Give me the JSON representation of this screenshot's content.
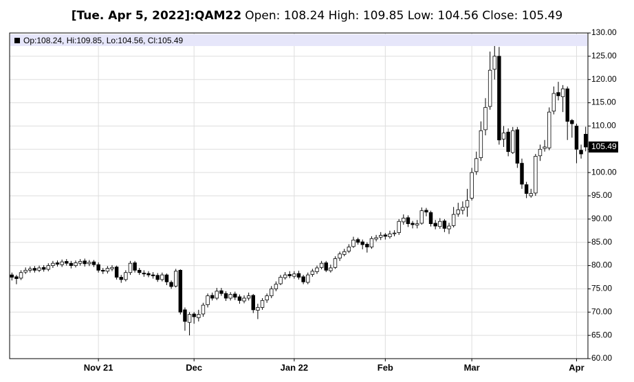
{
  "chart_data": {
    "type": "candlestick",
    "title_symbol": "[Tue. Apr 5, 2022]:QAM22",
    "title_rest": "Open: 108.24 High: 109.85 Low: 104.56 Close: 105.49",
    "legend_text": "Op:108.24, Hi:109.85, Lo:104.56, Cl:105.49",
    "categories": [
      null,
      null,
      null,
      null,
      null,
      null,
      null,
      null,
      null,
      null,
      null,
      null,
      null,
      null,
      null,
      null,
      null,
      null,
      null,
      "Nov 21",
      null,
      null,
      null,
      null,
      null,
      null,
      null,
      null,
      null,
      null,
      null,
      null,
      null,
      null,
      null,
      null,
      null,
      null,
      null,
      null,
      "Dec",
      null,
      null,
      null,
      null,
      null,
      null,
      null,
      null,
      null,
      null,
      null,
      null,
      null,
      null,
      null,
      null,
      null,
      null,
      null,
      null,
      null,
      "Jan 22",
      null,
      null,
      null,
      null,
      null,
      null,
      null,
      null,
      null,
      null,
      null,
      null,
      null,
      null,
      null,
      null,
      null,
      null,
      null,
      "Feb",
      null,
      null,
      null,
      null,
      null,
      null,
      null,
      null,
      null,
      null,
      null,
      null,
      null,
      null,
      null,
      null,
      null,
      null,
      "Mar",
      null,
      null,
      null,
      null,
      null,
      null,
      null,
      null,
      null,
      null,
      null,
      null,
      null,
      null,
      null,
      null,
      null,
      null,
      null,
      null,
      null,
      null,
      "Apr",
      null,
      null
    ],
    "open": [
      78.0,
      77.6,
      77.3,
      78.6,
      79.0,
      79.4,
      79.0,
      79.6,
      79.2,
      80.0,
      80.6,
      80.2,
      80.9,
      80.5,
      80.0,
      80.5,
      81.0,
      80.4,
      80.8,
      80.2,
      79.0,
      78.8,
      79.3,
      79.7,
      77.5,
      77.0,
      78.5,
      80.6,
      79.0,
      78.4,
      78.3,
      78.0,
      77.9,
      77.0,
      78.0,
      76.4,
      75.6,
      79.0,
      70.5,
      67.8,
      69.6,
      68.8,
      69.6,
      71.6,
      73.6,
      73.0,
      74.6,
      74.0,
      73.0,
      73.9,
      73.3,
      72.4,
      73.0,
      73.6,
      70.4,
      71.0,
      72.6,
      73.5,
      75.0,
      76.1,
      77.4,
      78.1,
      77.7,
      78.3,
      77.6,
      76.4,
      78.1,
      78.7,
      79.6,
      80.6,
      78.9,
      79.6,
      81.6,
      82.4,
      83.1,
      84.1,
      85.6,
      85.1,
      84.6,
      84.0,
      85.7,
      86.1,
      86.6,
      86.2,
      86.9,
      87.1,
      89.4,
      90.3,
      89.1,
      88.7,
      89.1,
      91.9,
      91.4,
      89.1,
      88.4,
      89.6,
      87.9,
      88.6,
      91.1,
      91.9,
      92.6,
      94.5,
      100.2,
      103.2,
      109.2,
      114.2,
      122.2,
      125.0,
      107.2,
      108.7,
      104.3,
      109.2,
      102.0,
      97.4,
      95.0,
      95.6,
      103.6,
      105.2,
      105.3,
      113.2,
      117.2,
      116.3,
      118.0,
      111.2,
      110.0,
      104.8,
      108.24
    ],
    "high": [
      78.5,
      78.0,
      79.0,
      79.6,
      79.8,
      79.9,
      80.0,
      80.1,
      80.5,
      81.0,
      81.1,
      81.3,
      81.4,
      81.0,
      81.1,
      81.4,
      81.5,
      81.2,
      81.2,
      80.7,
      79.5,
      79.9,
      80.1,
      80.0,
      78.0,
      79.0,
      81.0,
      81.0,
      79.5,
      79.0,
      78.8,
      78.6,
      78.4,
      78.5,
      78.3,
      76.8,
      79.3,
      79.2,
      71.0,
      70.0,
      70.0,
      70.5,
      72.0,
      74.0,
      74.2,
      75.2,
      75.2,
      74.5,
      74.3,
      74.4,
      73.8,
      73.6,
      74.2,
      73.9,
      71.8,
      73.0,
      74.0,
      75.6,
      76.6,
      78.0,
      78.6,
      78.8,
      78.8,
      78.9,
      78.0,
      78.5,
      79.3,
      80.0,
      81.0,
      81.0,
      80.2,
      82.0,
      83.0,
      83.6,
      84.6,
      86.2,
      86.0,
      85.6,
      85.0,
      86.3,
      86.6,
      87.2,
      87.0,
      87.5,
      87.6,
      90.0,
      91.0,
      90.8,
      89.6,
      89.8,
      92.5,
      92.4,
      91.8,
      89.8,
      90.2,
      90.0,
      89.2,
      92.6,
      93.5,
      93.8,
      96.5,
      101.0,
      104.5,
      111.0,
      116.0,
      126.0,
      128.0,
      127.0,
      110.0,
      109.5,
      109.8,
      109.8,
      103.0,
      98.0,
      96.5,
      104.0,
      106.0,
      107.0,
      114.0,
      118.5,
      119.5,
      118.8,
      118.5,
      111.5,
      110.5,
      106.0,
      109.85
    ],
    "low": [
      76.8,
      76.0,
      76.9,
      78.2,
      78.5,
      78.5,
      78.6,
      78.7,
      78.8,
      79.5,
      79.8,
      79.7,
      80.0,
      79.4,
      79.6,
      80.0,
      79.8,
      79.9,
      79.7,
      78.5,
      78.2,
      78.3,
      78.8,
      77.0,
      76.3,
      76.6,
      78.0,
      78.5,
      78.0,
      77.6,
      77.5,
      77.2,
      76.5,
      76.6,
      75.8,
      75.0,
      75.3,
      69.5,
      66.0,
      65.0,
      67.5,
      68.0,
      69.0,
      71.0,
      72.5,
      72.6,
      73.5,
      72.4,
      72.5,
      72.6,
      71.8,
      71.9,
      72.5,
      69.8,
      68.5,
      70.5,
      72.0,
      73.0,
      74.5,
      75.8,
      77.0,
      77.3,
      77.2,
      77.0,
      76.0,
      76.0,
      77.6,
      78.2,
      79.2,
      78.6,
      78.5,
      79.3,
      81.0,
      82.0,
      82.7,
      83.8,
      84.5,
      83.5,
      82.8,
      83.6,
      85.2,
      85.5,
      85.6,
      85.8,
      86.3,
      86.6,
      88.8,
      88.3,
      88.0,
      88.0,
      88.8,
      90.6,
      88.4,
      87.8,
      87.9,
      87.2,
      86.8,
      88.2,
      90.5,
      91.0,
      90.5,
      94.0,
      99.5,
      102.5,
      108.0,
      113.5,
      120.0,
      106.0,
      105.5,
      103.5,
      104.0,
      101.0,
      96.5,
      94.5,
      94.6,
      95.0,
      102.5,
      104.5,
      104.8,
      112.5,
      115.5,
      113.0,
      107.0,
      107.5,
      102.0,
      103.0,
      104.56
    ],
    "close": [
      77.5,
      77.2,
      78.5,
      79.0,
      79.3,
      79.0,
      79.5,
      79.2,
      80.0,
      80.5,
      80.3,
      80.8,
      80.5,
      80.0,
      80.6,
      80.9,
      80.4,
      80.7,
      80.2,
      79.0,
      78.8,
      79.4,
      79.6,
      77.5,
      77.0,
      78.5,
      80.5,
      79.0,
      78.5,
      78.2,
      78.0,
      77.8,
      77.0,
      78.0,
      76.5,
      75.5,
      78.8,
      70.0,
      68.0,
      69.5,
      69.0,
      69.5,
      71.5,
      73.5,
      73.0,
      74.5,
      74.0,
      73.0,
      73.8,
      73.2,
      72.5,
      73.0,
      73.5,
      70.5,
      71.0,
      72.5,
      73.5,
      75.0,
      76.0,
      77.5,
      78.0,
      77.8,
      78.2,
      77.5,
      76.5,
      78.0,
      78.8,
      79.5,
      80.5,
      79.0,
      79.5,
      81.5,
      82.5,
      83.0,
      84.0,
      85.5,
      85.0,
      84.5,
      84.0,
      85.8,
      86.0,
      86.5,
      86.3,
      86.8,
      87.0,
      89.5,
      90.2,
      89.0,
      88.8,
      89.0,
      91.8,
      91.5,
      89.0,
      88.5,
      89.5,
      88.0,
      88.5,
      91.0,
      92.0,
      92.5,
      94.0,
      100.0,
      103.0,
      109.0,
      114.0,
      122.0,
      125.0,
      107.0,
      108.5,
      104.5,
      109.0,
      102.0,
      97.5,
      95.5,
      95.5,
      103.5,
      105.0,
      105.5,
      113.0,
      117.0,
      116.5,
      118.0,
      111.0,
      110.5,
      105.0,
      104.0,
      105.49
    ],
    "up_color": "#ffffff",
    "down_color": "#000000",
    "wick_color": "#000000",
    "ylim": [
      60,
      130
    ],
    "yticks": [
      {
        "value": 60,
        "label": "60.00"
      },
      {
        "value": 65,
        "label": "65.00"
      },
      {
        "value": 70,
        "label": "70.00"
      },
      {
        "value": 75,
        "label": "75.00"
      },
      {
        "value": 80,
        "label": "80.00"
      },
      {
        "value": 85,
        "label": "85.00"
      },
      {
        "value": 90,
        "label": "90.00"
      },
      {
        "value": 95,
        "label": "95.00"
      },
      {
        "value": 100,
        "label": "100.00"
      },
      {
        "value": 105,
        "label": "105.00"
      },
      {
        "value": 110,
        "label": "110.00"
      },
      {
        "value": 115,
        "label": "115.00"
      },
      {
        "value": 120,
        "label": "120.00"
      },
      {
        "value": 125,
        "label": "125.00"
      },
      {
        "value": 130,
        "label": "130.00"
      }
    ],
    "grid": true
  }
}
